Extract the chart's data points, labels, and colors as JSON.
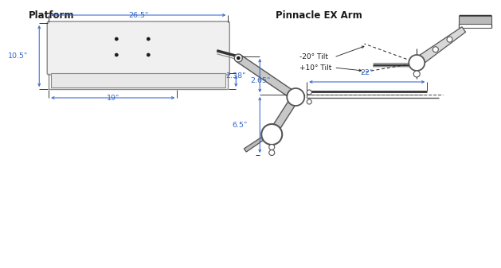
{
  "title_platform": "Platform",
  "title_arm": "Pinnacle EX Arm",
  "dim_26_5": "26.5\"",
  "dim_10_5": "10.5\"",
  "dim_2_65": "2.65\"",
  "dim_19": "19\"",
  "dim_neg20": "-20° Tilt",
  "dim_pos10": "+10° Tilt",
  "dim_2_38": "2.38\"",
  "dim_22": "22\"",
  "dim_6_5": "6.5\"",
  "lc": "#1a1a1a",
  "dc": "#555555",
  "dimc": "#3366cc",
  "bg": "#ffffff"
}
